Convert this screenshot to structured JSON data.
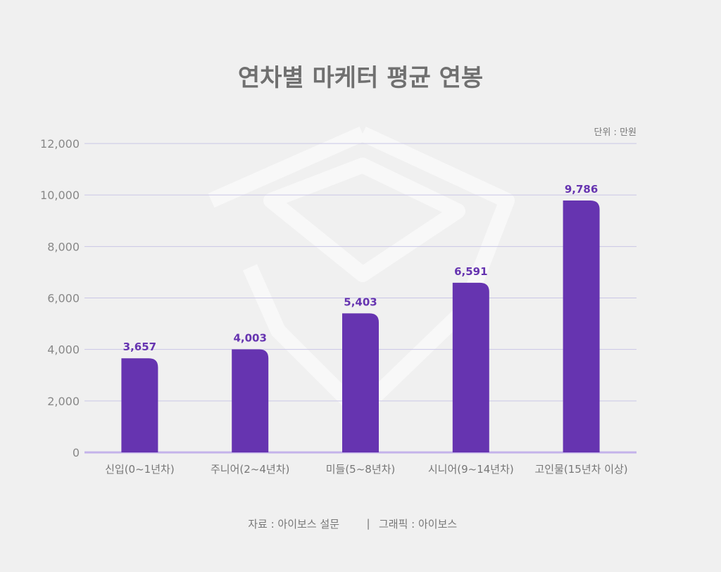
{
  "chart_data": {
    "type": "bar",
    "title": "연차별 마케터 평균 연봉",
    "unit_note": "단위 : 만원",
    "categories": [
      "신입(0~1년차)",
      "주니어(2~4년차)",
      "미들(5~8년차)",
      "시니어(9~14년차)",
      "고인물(15년차 이상)"
    ],
    "values": [
      3657,
      4003,
      5403,
      6591,
      9786
    ],
    "value_labels": [
      "3,657",
      "4,003",
      "5,403",
      "6,591",
      "9,786"
    ],
    "ylim": [
      0,
      12000
    ],
    "yticks": [
      "0",
      "2,000",
      "4,000",
      "6,000",
      "8,000",
      "10,000",
      "12,000"
    ],
    "grid": true,
    "bar_color": "#6634b0"
  },
  "source_text": "자료 : 아이보스 설문",
  "separator": "|",
  "graphic_text": "그래픽 : 아이보스"
}
